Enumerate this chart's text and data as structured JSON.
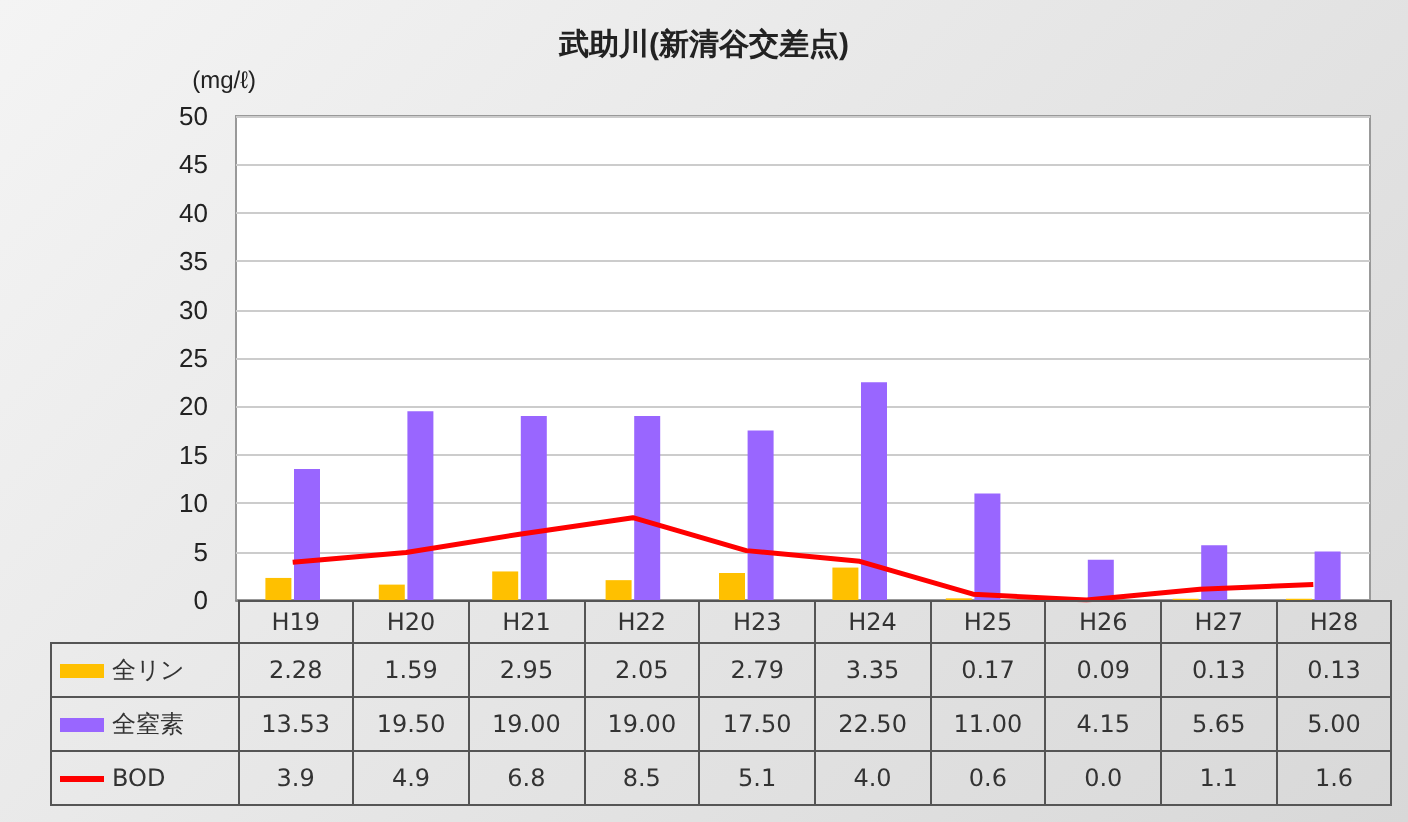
{
  "chart_data": {
    "type": "bar",
    "title": "武助川(新清谷交差点)",
    "ylabel": "(mg/ℓ)",
    "categories": [
      "H19",
      "H20",
      "H21",
      "H22",
      "H23",
      "H24",
      "H25",
      "H26",
      "H27",
      "H28"
    ],
    "series": [
      {
        "name": "全リン",
        "color": "#ffc000",
        "values": [
          2.28,
          1.59,
          2.95,
          2.05,
          2.79,
          3.35,
          0.17,
          0.09,
          0.13,
          0.13
        ],
        "value_labels": [
          "2.28",
          "1.59",
          "2.95",
          "2.05",
          "2.79",
          "3.35",
          "0.17",
          "0.09",
          "0.13",
          "0.13"
        ]
      },
      {
        "name": "全窒素",
        "color": "#9966ff",
        "values": [
          13.53,
          19.5,
          19.0,
          19.0,
          17.5,
          22.5,
          11.0,
          4.15,
          5.65,
          5.0
        ],
        "value_labels": [
          "13.53",
          "19.50",
          "19.00",
          "19.00",
          "17.50",
          "22.50",
          "11.00",
          "4.15",
          "5.65",
          "5.00"
        ]
      },
      {
        "name": "BOD",
        "type": "line",
        "color": "#ff0000",
        "marker": "none",
        "values": [
          3.9,
          4.9,
          6.8,
          8.5,
          5.1,
          4.0,
          0.6,
          0.0,
          1.1,
          1.6
        ],
        "value_labels": [
          "3.9",
          "4.9",
          "6.8",
          "8.5",
          "5.1",
          "4.0",
          "0.6",
          "0.0",
          "1.1",
          "1.6"
        ]
      }
    ],
    "ylim": [
      0,
      50
    ],
    "yticks": [
      0,
      5,
      10,
      15,
      20,
      25,
      30,
      35,
      40,
      45,
      50
    ],
    "grid": "y",
    "legend": "bottom left"
  }
}
